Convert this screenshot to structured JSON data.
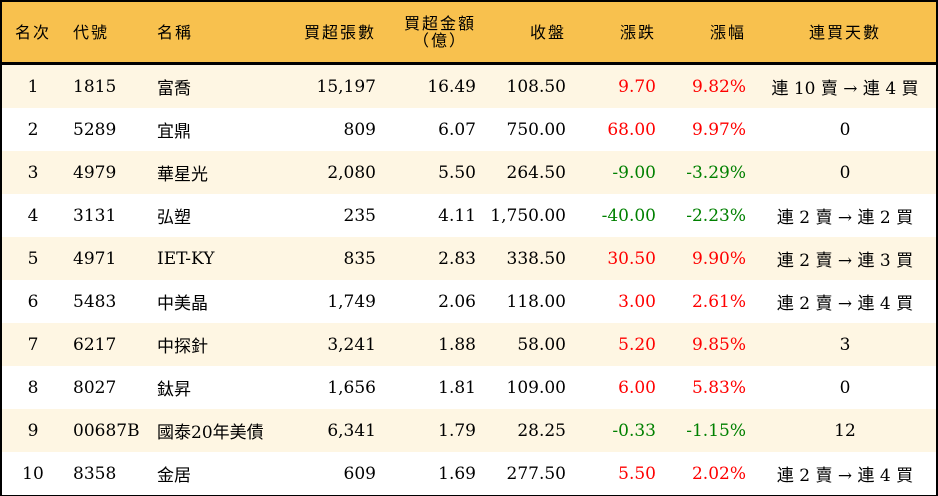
{
  "headers": [
    "名次",
    "代號",
    "名稱",
    "買超張數",
    "買超金額（億）",
    "收盤",
    "漲跌",
    "漲幅",
    "連買天數"
  ],
  "header_amount_line1": "買超金額",
  "header_amount_line2": "（億）",
  "colors": {
    "header_bg": "#F8C14E",
    "row_alt": "#FEF6E3",
    "up": "#FF0000",
    "down": "#008000"
  },
  "rows": [
    {
      "rank": "1",
      "code": "1815",
      "name": "富喬",
      "lots": "15,197",
      "amount": "16.49",
      "close": "108.50",
      "change": "9.70",
      "pct": "9.82%",
      "days": "連 10 賣 → 連 4 買",
      "dir": "up"
    },
    {
      "rank": "2",
      "code": "5289",
      "name": "宜鼎",
      "lots": "809",
      "amount": "6.07",
      "close": "750.00",
      "change": "68.00",
      "pct": "9.97%",
      "days": "0",
      "dir": "up"
    },
    {
      "rank": "3",
      "code": "4979",
      "name": "華星光",
      "lots": "2,080",
      "amount": "5.50",
      "close": "264.50",
      "change": "-9.00",
      "pct": "-3.29%",
      "days": "0",
      "dir": "dn"
    },
    {
      "rank": "4",
      "code": "3131",
      "name": "弘塑",
      "lots": "235",
      "amount": "4.11",
      "close": "1,750.00",
      "change": "-40.00",
      "pct": "-2.23%",
      "days": "連 2 賣 → 連 2 買",
      "dir": "dn"
    },
    {
      "rank": "5",
      "code": "4971",
      "name": "IET-KY",
      "lots": "835",
      "amount": "2.83",
      "close": "338.50",
      "change": "30.50",
      "pct": "9.90%",
      "days": "連 2 賣 → 連 3 買",
      "dir": "up"
    },
    {
      "rank": "6",
      "code": "5483",
      "name": "中美晶",
      "lots": "1,749",
      "amount": "2.06",
      "close": "118.00",
      "change": "3.00",
      "pct": "2.61%",
      "days": "連 2 賣 → 連 4 買",
      "dir": "up"
    },
    {
      "rank": "7",
      "code": "6217",
      "name": "中探針",
      "lots": "3,241",
      "amount": "1.88",
      "close": "58.00",
      "change": "5.20",
      "pct": "9.85%",
      "days": "3",
      "dir": "up"
    },
    {
      "rank": "8",
      "code": "8027",
      "name": "鈦昇",
      "lots": "1,656",
      "amount": "1.81",
      "close": "109.00",
      "change": "6.00",
      "pct": "5.83%",
      "days": "0",
      "dir": "up"
    },
    {
      "rank": "9",
      "code": "00687B",
      "name": "國泰20年美債",
      "lots": "6,341",
      "amount": "1.79",
      "close": "28.25",
      "change": "-0.33",
      "pct": "-1.15%",
      "days": "12",
      "dir": "dn"
    },
    {
      "rank": "10",
      "code": "8358",
      "name": "金居",
      "lots": "609",
      "amount": "1.69",
      "close": "277.50",
      "change": "5.50",
      "pct": "2.02%",
      "days": "連 2 賣 → 連 4 買",
      "dir": "up"
    }
  ]
}
